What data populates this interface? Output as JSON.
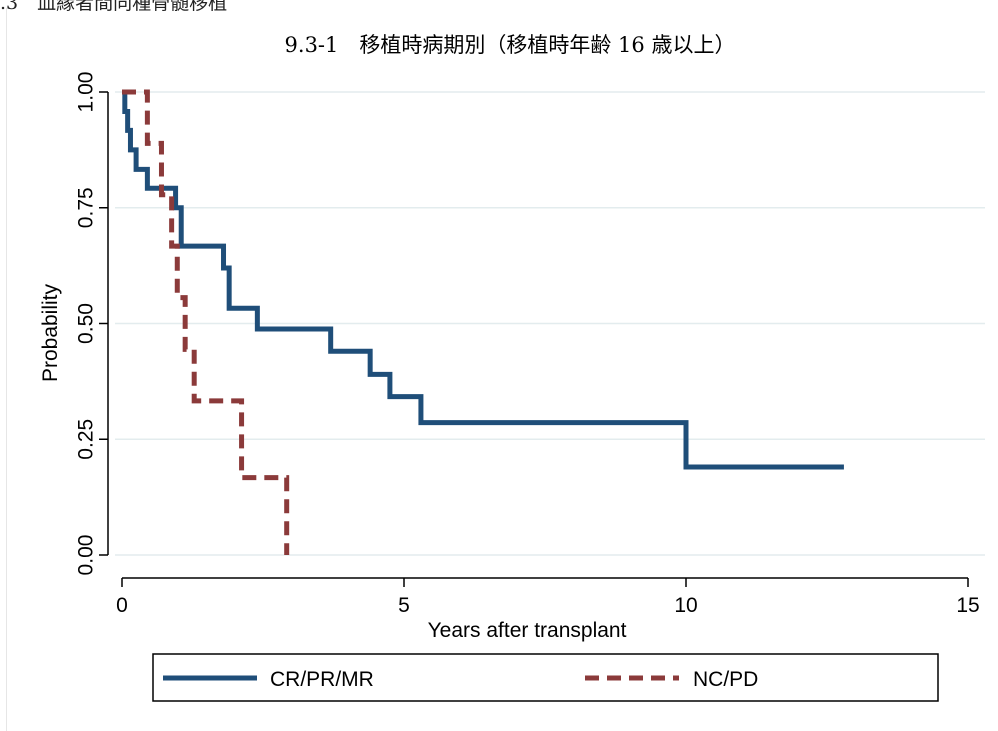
{
  "page": {
    "section_heading": ".3　血縁者間同種骨髄移植"
  },
  "chart_data": {
    "type": "line",
    "subtype": "step",
    "title": "9.3-1　移植時病期別（移植時年齢 16 歳以上）",
    "xlabel": "Years after transplant",
    "ylabel": "Probability",
    "xlim": [
      0,
      15
    ],
    "ylim": [
      0,
      1
    ],
    "xticks": [
      0,
      5,
      10,
      15
    ],
    "xtick_labels": [
      "0",
      "5",
      "10",
      "15"
    ],
    "yticks": [
      0,
      0.25,
      0.5,
      0.75,
      1
    ],
    "ytick_labels": [
      "0.00",
      "0.25",
      "0.50",
      "0.75",
      "1.00"
    ],
    "grid": true,
    "legend_position": "bottom",
    "series": [
      {
        "name": "CR/PR/MR",
        "color": "#1f4e79",
        "dash": "solid",
        "x": [
          0,
          0.05,
          0.1,
          0.15,
          0.25,
          0.45,
          0.95,
          1.05,
          1.65,
          1.8,
          1.9,
          2.4,
          3.7,
          4.4,
          4.75,
          5.3,
          10.0,
          12.8
        ],
        "y": [
          1.0,
          0.958,
          0.917,
          0.875,
          0.833,
          0.792,
          0.75,
          0.667,
          0.667,
          0.62,
          0.533,
          0.488,
          0.44,
          0.39,
          0.342,
          0.286,
          0.19,
          0.19
        ]
      },
      {
        "name": "NC/PD",
        "color": "#8b3a3a",
        "dash": "dashed",
        "x": [
          0,
          0.45,
          0.7,
          0.88,
          0.98,
          1.12,
          1.28,
          1.38,
          2.12,
          2.92
        ],
        "y": [
          1.0,
          0.889,
          0.778,
          0.667,
          0.556,
          0.444,
          0.333,
          0.333,
          0.167,
          0.0
        ]
      }
    ]
  }
}
